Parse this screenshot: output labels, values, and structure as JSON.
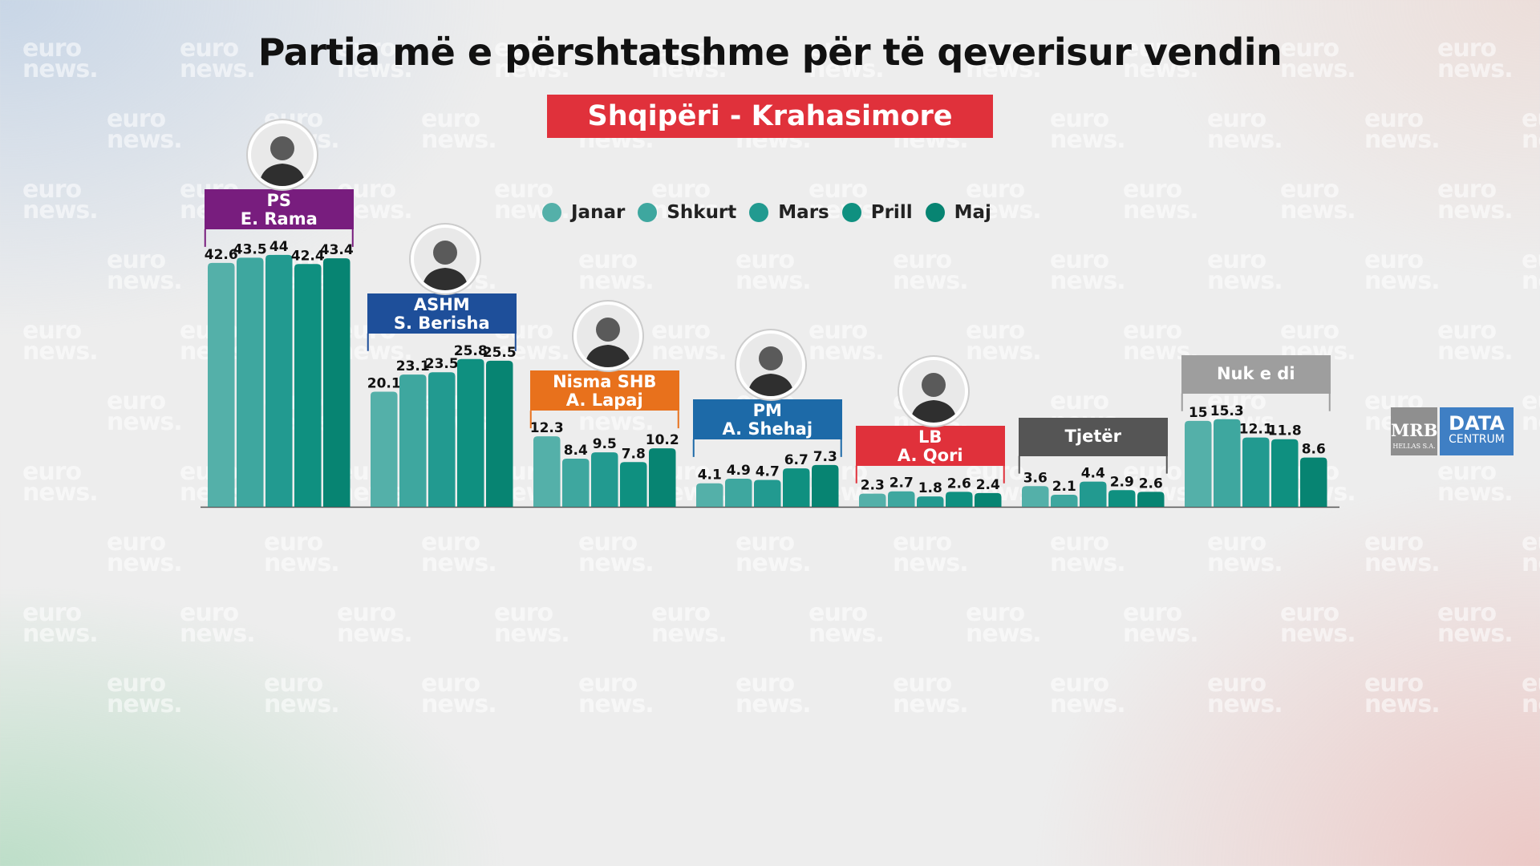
{
  "watermark": {
    "line1": "euro",
    "line2": "news."
  },
  "logos": {
    "mrb_main": "MRB",
    "mrb_sub": "HELLAS S.A.",
    "data_main": "DATA",
    "data_sub": "CENTRUM"
  },
  "colors": {
    "Janar": "#54b0a9",
    "Shkurt": "#3ea79f",
    "Mars": "#229a90",
    "Prill": "#0f9080",
    "Maj": "#078472",
    "PS": "#781d7e",
    "ASHM": "#1e4f9a",
    "Nisma SHB": "#e8711c",
    "PM": "#1d6aa8",
    "LB": "#e0313b",
    "Tjeter": "#555555",
    "NukEDi": "#9e9e9e",
    "subtitle_bg": "#e0313b"
  },
  "chart_data": {
    "type": "bar",
    "title": "Partia më e përshtatshme për të qeverisur vendin",
    "subtitle": "Shqipëri - Krahasimore",
    "xlabel": "",
    "ylabel": "",
    "ylim": [
      0,
      44
    ],
    "grid": false,
    "legend_position": "top-center",
    "series_names": [
      "Janar",
      "Shkurt",
      "Mars",
      "Prill",
      "Maj"
    ],
    "categories": [
      {
        "party": "PS",
        "leader": "E. Rama",
        "color_key": "PS",
        "avatar": "person-icon",
        "values": [
          42.6,
          43.5,
          44,
          42.4,
          43.4
        ]
      },
      {
        "party": "ASHM",
        "leader": "S. Berisha",
        "color_key": "ASHM",
        "avatar": "person-icon",
        "values": [
          20.1,
          23.1,
          23.5,
          25.8,
          25.5
        ]
      },
      {
        "party": "Nisma SHB",
        "leader": "A. Lapaj",
        "color_key": "Nisma SHB",
        "avatar": "person-icon",
        "values": [
          12.3,
          8.4,
          9.5,
          7.8,
          10.2
        ]
      },
      {
        "party": "PM",
        "leader": "A. Shehaj",
        "color_key": "PM",
        "avatar": "person-icon",
        "values": [
          4.1,
          4.9,
          4.7,
          6.7,
          7.3
        ]
      },
      {
        "party": "LB",
        "leader": "A. Qori",
        "color_key": "LB",
        "avatar": "person-icon",
        "values": [
          2.3,
          2.7,
          1.8,
          2.6,
          2.4
        ]
      },
      {
        "party": "Tjetër",
        "leader": "",
        "color_key": "Tjeter",
        "avatar": "",
        "values": [
          3.6,
          2.1,
          4.4,
          2.9,
          2.6
        ]
      },
      {
        "party": "Nuk e di",
        "leader": "",
        "color_key": "NukEDi",
        "avatar": "",
        "values": [
          15,
          15.3,
          12.1,
          11.8,
          8.6
        ]
      }
    ]
  }
}
